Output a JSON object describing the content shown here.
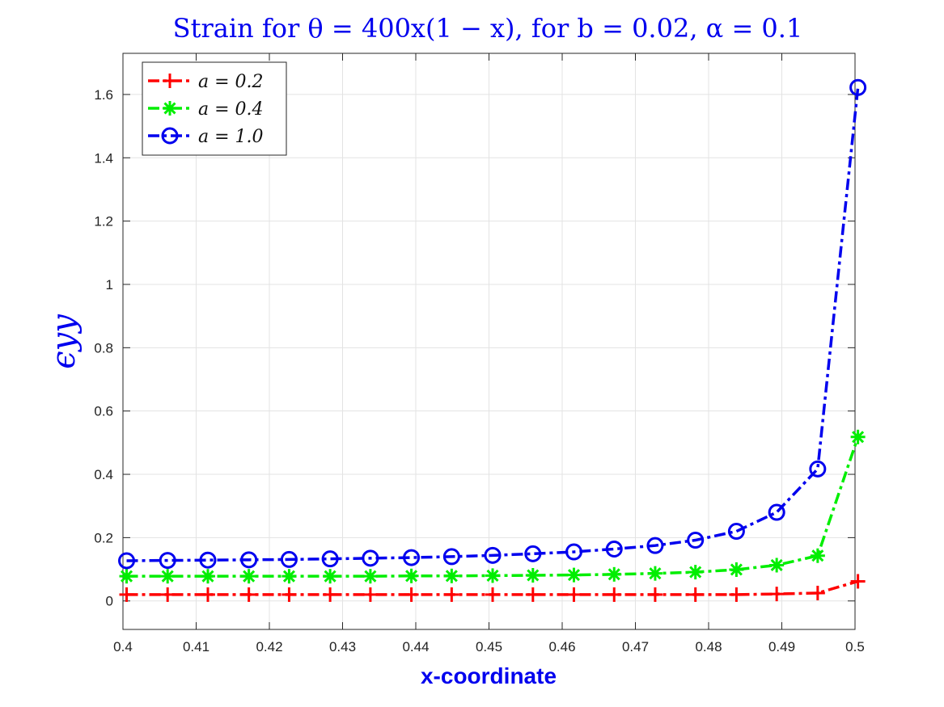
{
  "chart_data": {
    "type": "line",
    "title": "Strain for θ = 400x(1 − x), for b = 0.02, α = 0.1",
    "xlabel": "x-coordinate",
    "ylabel": "ϵyy",
    "xlim": [
      0.4,
      0.5
    ],
    "ylim": [
      -0.09,
      1.73
    ],
    "grid": true,
    "legend_position": "top-left",
    "x_ticks": [
      0.4,
      0.41,
      0.42,
      0.43,
      0.44,
      0.45,
      0.46,
      0.47,
      0.48,
      0.49,
      0.5
    ],
    "x_tick_labels": [
      "0.4",
      "0.41",
      "0.42",
      "0.43",
      "0.44",
      "0.45",
      "0.46",
      "0.47",
      "0.48",
      "0.49",
      "0.5"
    ],
    "y_ticks": [
      0,
      0.2,
      0.4,
      0.6,
      0.8,
      1,
      1.2,
      1.4,
      1.6
    ],
    "y_tick_labels": [
      "0",
      "0.2",
      "0.4",
      "0.6",
      "0.8",
      "1",
      "1.2",
      "1.4",
      "1.6"
    ],
    "x": [
      0.4005,
      0.4061,
      0.4116,
      0.4172,
      0.4227,
      0.4283,
      0.4338,
      0.4394,
      0.4449,
      0.4505,
      0.456,
      0.4616,
      0.4671,
      0.4727,
      0.4782,
      0.4838,
      0.4893,
      0.4949,
      0.5004
    ],
    "series": [
      {
        "name": "a = 0.2",
        "color": "#ff0000",
        "marker": "plus",
        "values": [
          0.02,
          0.02,
          0.02,
          0.02,
          0.02,
          0.02,
          0.02,
          0.02,
          0.02,
          0.02,
          0.02,
          0.02,
          0.02,
          0.02,
          0.02,
          0.02,
          0.022,
          0.025,
          0.062
        ]
      },
      {
        "name": "a = 0.4",
        "color": "#00ee00",
        "marker": "asterisk",
        "values": [
          0.078,
          0.078,
          0.078,
          0.078,
          0.078,
          0.078,
          0.078,
          0.079,
          0.079,
          0.08,
          0.081,
          0.082,
          0.084,
          0.087,
          0.091,
          0.099,
          0.113,
          0.143,
          0.518
        ]
      },
      {
        "name": "a = 1.0",
        "color": "#0000ee",
        "marker": "circle",
        "values": [
          0.127,
          0.128,
          0.129,
          0.13,
          0.131,
          0.133,
          0.135,
          0.137,
          0.14,
          0.144,
          0.149,
          0.155,
          0.164,
          0.175,
          0.192,
          0.22,
          0.28,
          0.417,
          1.622
        ]
      }
    ]
  }
}
